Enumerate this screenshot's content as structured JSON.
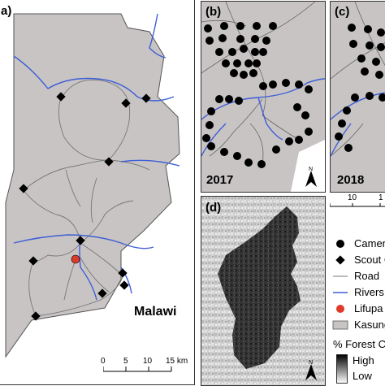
{
  "panels": {
    "a": {
      "label": "a)",
      "country": "Malawi"
    },
    "b": {
      "label": "(b)",
      "year": "2017"
    },
    "c": {
      "label": "(c)",
      "year": "2018"
    },
    "d": {
      "label": "(d)"
    }
  },
  "scale_bar": {
    "ticks": [
      "0",
      "5",
      "10",
      "15 km"
    ]
  },
  "side_ticks": {
    "left": "10",
    "right": "1"
  },
  "legend": {
    "items": [
      {
        "label": "Camera",
        "icon": "circle"
      },
      {
        "label": "Scout C",
        "icon": "diamond"
      },
      {
        "label": "Road",
        "icon": "line-thin"
      },
      {
        "label": "Rivers",
        "icon": "line-blue"
      },
      {
        "label": "Lifupa L",
        "icon": "red-dot"
      },
      {
        "label": "Kasung",
        "icon": "grey-box"
      }
    ],
    "forest_title": "% Forest C",
    "forest_high": "High",
    "forest_low": "Low"
  },
  "colors": {
    "land": "#c8c4c4",
    "river": "#3e5fd6",
    "road": "#777777",
    "lodge": "#e03a2a",
    "panel_d_dark": "#2a2a2a"
  }
}
